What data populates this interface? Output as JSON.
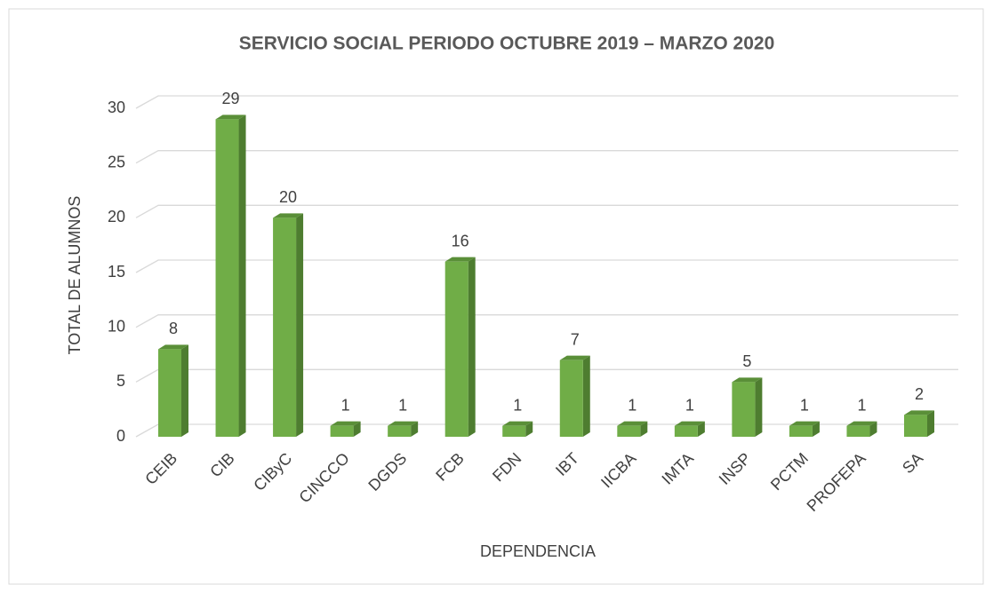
{
  "chart_data": {
    "type": "bar",
    "title": "SERVICIO SOCIAL PERIODO OCTUBRE 2019 – MARZO 2020",
    "x_label": "DEPENDENCIA",
    "y_label": "TOTAL DE ALUMNOS",
    "categories": [
      "CEIB",
      "CIB",
      "CIByC",
      "CINCCO",
      "DGDS",
      "FCB",
      "FDN",
      "IBT",
      "IICBA",
      "IMTA",
      "INSP",
      "PCTM",
      "PROFEPA",
      "SA"
    ],
    "values": [
      8,
      29,
      20,
      1,
      1,
      16,
      1,
      7,
      1,
      1,
      5,
      1,
      1,
      2
    ],
    "color": "#70ad47",
    "ylim": [
      0,
      30
    ],
    "yticks": [
      0,
      5,
      10,
      15,
      20,
      25,
      30
    ],
    "grid": true
  }
}
